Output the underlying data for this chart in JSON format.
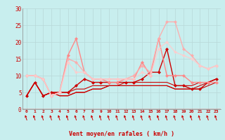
{
  "xlabel": "Vent moyen/en rafales ( km/h )",
  "xlim": [
    -0.5,
    23.5
  ],
  "ylim": [
    0,
    30
  ],
  "yticks": [
    0,
    5,
    10,
    15,
    20,
    25,
    30
  ],
  "xticks": [
    0,
    1,
    2,
    3,
    4,
    5,
    6,
    7,
    8,
    9,
    10,
    11,
    12,
    13,
    14,
    15,
    16,
    17,
    18,
    19,
    20,
    21,
    22,
    23
  ],
  "bg_color": "#c8eeee",
  "grid_color": "#b0d8d8",
  "series": [
    {
      "y": [
        4,
        8,
        4,
        5,
        5,
        5,
        7,
        9,
        8,
        8,
        8,
        8,
        8,
        8,
        9,
        11,
        11,
        18,
        7,
        7,
        6,
        6,
        8,
        9
      ],
      "color": "#cc0000",
      "marker": "D",
      "markersize": 2.5,
      "linewidth": 1.0,
      "alpha": 1.0,
      "zorder": 5
    },
    {
      "y": [
        4,
        8,
        4,
        5,
        4,
        4,
        5,
        5,
        6,
        6,
        7,
        7,
        7,
        7,
        7,
        7,
        7,
        7,
        6,
        6,
        6,
        7,
        8,
        9
      ],
      "color": "#cc0000",
      "marker": null,
      "markersize": 0,
      "linewidth": 0.8,
      "alpha": 1.0,
      "zorder": 4
    },
    {
      "y": [
        4,
        8,
        4,
        5,
        5,
        5,
        6,
        6,
        7,
        7,
        7,
        7,
        8,
        8,
        8,
        8,
        8,
        8,
        7,
        7,
        7,
        8,
        8,
        9
      ],
      "color": "#cc0000",
      "marker": null,
      "markersize": 0,
      "linewidth": 0.8,
      "alpha": 1.0,
      "zorder": 4
    },
    {
      "y": [
        4,
        8,
        4,
        5,
        4,
        4,
        5,
        5,
        6,
        6,
        7,
        7,
        7,
        7,
        7,
        7,
        7,
        7,
        6,
        6,
        6,
        6,
        7,
        8
      ],
      "color": "#cc0000",
      "marker": null,
      "markersize": 0,
      "linewidth": 0.8,
      "alpha": 1.0,
      "zorder": 4
    },
    {
      "y": [
        10,
        10,
        9,
        4,
        5,
        16,
        21,
        11,
        9,
        9,
        8,
        8,
        9,
        9,
        14,
        10,
        21,
        10,
        10,
        10,
        8,
        8,
        8,
        8
      ],
      "color": "#ff8888",
      "marker": "D",
      "markersize": 2.5,
      "linewidth": 1.0,
      "alpha": 1.0,
      "zorder": 5
    },
    {
      "y": [
        10,
        10,
        9,
        4,
        5,
        15,
        14,
        11,
        9,
        9,
        9,
        9,
        9,
        10,
        13,
        11,
        21,
        26,
        26,
        18,
        16,
        13,
        12,
        13
      ],
      "color": "#ffaaaa",
      "marker": "D",
      "markersize": 2.5,
      "linewidth": 1.0,
      "alpha": 0.9,
      "zorder": 5
    },
    {
      "y": [
        10,
        10,
        9,
        4,
        5,
        14,
        11,
        11,
        9,
        9,
        9,
        9,
        9,
        9,
        11,
        10,
        18,
        20,
        17,
        16,
        15,
        13,
        12,
        13
      ],
      "color": "#ffcccc",
      "marker": "D",
      "markersize": 2.5,
      "linewidth": 1.0,
      "alpha": 0.85,
      "zorder": 5
    }
  ],
  "arrow_color": "#cc0000"
}
